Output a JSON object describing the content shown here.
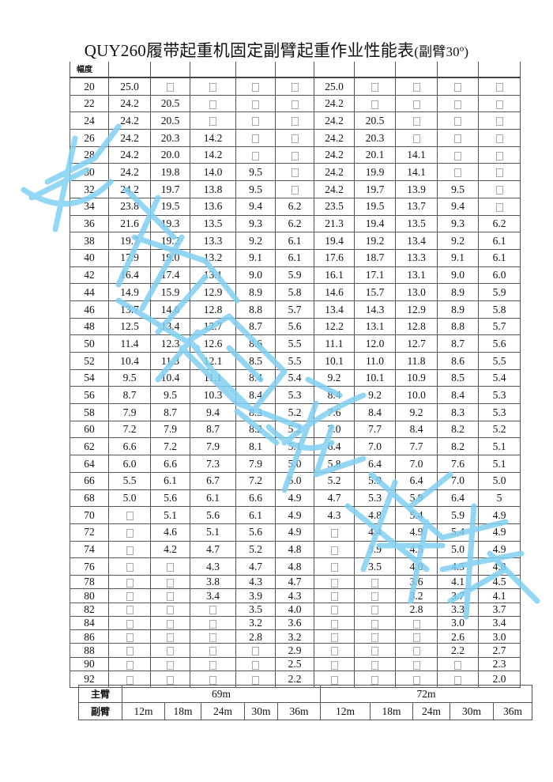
{
  "title": "QUY260履带起重机固定副臂起重作业性能表",
  "title_suffix": "(副臂30º)",
  "header_label": "幅度",
  "watermark_color": "#7fd0f2",
  "rows": [
    {
      "r": "20",
      "v": [
        "25.0",
        null,
        null,
        null,
        null,
        "25.0",
        null,
        null,
        null,
        null
      ]
    },
    {
      "r": "22",
      "v": [
        "24.2",
        "20.5",
        null,
        null,
        null,
        "24.2",
        null,
        null,
        null,
        null
      ]
    },
    {
      "r": "24",
      "v": [
        "24.2",
        "20.5",
        null,
        null,
        null,
        "24.2",
        "20.5",
        null,
        null,
        null
      ]
    },
    {
      "r": "26",
      "v": [
        "24.2",
        "20.3",
        "14.2",
        null,
        null,
        "24.2",
        "20.3",
        null,
        null,
        null
      ]
    },
    {
      "r": "28",
      "v": [
        "24.2",
        "20.0",
        "14.2",
        null,
        null,
        "24.2",
        "20.1",
        "14.1",
        null,
        null
      ]
    },
    {
      "r": "30",
      "v": [
        "24.2",
        "19.8",
        "14.0",
        "9.5",
        null,
        "24.2",
        "19.9",
        "14.1",
        null,
        null
      ]
    },
    {
      "r": "32",
      "v": [
        "24.2",
        "19.7",
        "13.8",
        "9.5",
        null,
        "24.2",
        "19.7",
        "13.9",
        "9.5",
        null
      ]
    },
    {
      "r": "34",
      "v": [
        "23.8",
        "19.5",
        "13.6",
        "9.4",
        "6.2",
        "23.5",
        "19.5",
        "13.7",
        "9.4",
        null
      ]
    },
    {
      "r": "36",
      "v": [
        "21.6",
        "19.3",
        "13.5",
        "9.3",
        "6.2",
        "21.3",
        "19.4",
        "13.5",
        "9.3",
        "6.2"
      ]
    },
    {
      "r": "38",
      "v": [
        "19.7",
        "19.2",
        "13.3",
        "9.2",
        "6.1",
        "19.4",
        "19.2",
        "13.4",
        "9.2",
        "6.1"
      ]
    },
    {
      "r": "40",
      "v": [
        "17.9",
        "19.0",
        "13.2",
        "9.1",
        "6.1",
        "17.6",
        "18.7",
        "13.3",
        "9.1",
        "6.1"
      ]
    },
    {
      "r": "42",
      "v": [
        "16.4",
        "17.4",
        "13.1",
        "9.0",
        "5.9",
        "16.1",
        "17.1",
        "13.1",
        "9.0",
        "6.0"
      ]
    },
    {
      "r": "44",
      "v": [
        "14.9",
        "15.9",
        "12.9",
        "8.9",
        "5.8",
        "14.6",
        "15.7",
        "13.0",
        "8.9",
        "5.9"
      ]
    },
    {
      "r": "46",
      "v": [
        "13.7",
        "14.6",
        "12.8",
        "8.8",
        "5.7",
        "13.4",
        "14.3",
        "12.9",
        "8.9",
        "5.8"
      ]
    },
    {
      "r": "48",
      "v": [
        "12.5",
        "13.4",
        "12.7",
        "8.7",
        "5.6",
        "12.2",
        "13.1",
        "12.8",
        "8.8",
        "5.7"
      ]
    },
    {
      "r": "50",
      "v": [
        "11.4",
        "12.3",
        "12.6",
        "8.6",
        "5.5",
        "11.1",
        "12.0",
        "12.7",
        "8.7",
        "5.6"
      ]
    },
    {
      "r": "52",
      "v": [
        "10.4",
        "11.3",
        "12.1",
        "8.5",
        "5.5",
        "10.1",
        "11.0",
        "11.8",
        "8.6",
        "5.5"
      ]
    },
    {
      "r": "54",
      "v": [
        "9.5",
        "10.4",
        "11.1",
        "8.4",
        "5.4",
        "9.2",
        "10.1",
        "10.9",
        "8.5",
        "5.4"
      ]
    },
    {
      "r": "56",
      "v": [
        "8.7",
        "9.5",
        "10.3",
        "8.4",
        "5.3",
        "8.4",
        "9.2",
        "10.0",
        "8.4",
        "5.3"
      ]
    },
    {
      "r": "58",
      "v": [
        "7.9",
        "8.7",
        "9.4",
        "8.3",
        "5.2",
        "7.6",
        "8.4",
        "9.2",
        "8.3",
        "5.3"
      ]
    },
    {
      "r": "60",
      "v": [
        "7.2",
        "7.9",
        "8.7",
        "8.2",
        "5.2",
        "7.0",
        "7.7",
        "8.4",
        "8.2",
        "5.2"
      ]
    },
    {
      "r": "62",
      "v": [
        "6.6",
        "7.2",
        "7.9",
        "8.1",
        "5.1",
        "6.4",
        "7.0",
        "7.7",
        "8.2",
        "5.1"
      ]
    },
    {
      "r": "64",
      "v": [
        "6.0",
        "6.6",
        "7.3",
        "7.9",
        "5.0",
        "5.8",
        "6.4",
        "7.0",
        "7.6",
        "5.1"
      ]
    },
    {
      "r": "66",
      "v": [
        "5.5",
        "6.1",
        "6.7",
        "7.2",
        "5.0",
        "5.2",
        "5.9",
        "6.4",
        "7.0",
        "5.0"
      ]
    },
    {
      "r": "68",
      "v": [
        "5.0",
        "5.6",
        "6.1",
        "6.6",
        "4.9",
        "4.7",
        "5.3",
        "5.9",
        "6.4",
        "5"
      ]
    },
    {
      "r": "70",
      "v": [
        null,
        "5.1",
        "5.6",
        "6.1",
        "4.9",
        "4.3",
        "4.8",
        "5.4",
        "5.9",
        "4.9"
      ]
    },
    {
      "r": "72",
      "v": [
        null,
        "4.6",
        "5.1",
        "5.6",
        "4.9",
        null,
        "4.4",
        "4.9",
        "5.4",
        "4.9"
      ]
    },
    {
      "r": "74",
      "v": [
        null,
        "4.2",
        "4.7",
        "5.2",
        "4.8",
        null,
        "3.9",
        "4.5",
        "5.0",
        "4.9"
      ]
    },
    {
      "r": "76",
      "v": [
        null,
        null,
        "4.3",
        "4.7",
        "4.8",
        null,
        "3.5",
        "4.0",
        "4.5",
        "4.8"
      ]
    },
    {
      "r": "78",
      "v": [
        null,
        null,
        "3.8",
        "4.3",
        "4.7",
        null,
        null,
        "3.6",
        "4.1",
        "4.5"
      ]
    },
    {
      "r": "80",
      "v": [
        null,
        null,
        "3.4",
        "3.9",
        "4.3",
        null,
        null,
        "3.2",
        "3.7",
        "4.1"
      ]
    },
    {
      "r": "82",
      "v": [
        null,
        null,
        null,
        "3.5",
        "4.0",
        null,
        null,
        "2.8",
        "3.3",
        "3.7"
      ]
    },
    {
      "r": "84",
      "v": [
        null,
        null,
        null,
        "3.2",
        "3.6",
        null,
        null,
        null,
        "3.0",
        "3.4"
      ]
    },
    {
      "r": "86",
      "v": [
        null,
        null,
        null,
        "2.8",
        "3.2",
        null,
        null,
        null,
        "2.6",
        "3.0"
      ]
    },
    {
      "r": "88",
      "v": [
        null,
        null,
        null,
        null,
        "2.9",
        null,
        null,
        null,
        "2.2",
        "2.7"
      ]
    },
    {
      "r": "90",
      "v": [
        null,
        null,
        null,
        null,
        "2.5",
        null,
        null,
        null,
        null,
        "2.3"
      ]
    },
    {
      "r": "92",
      "v": [
        null,
        null,
        null,
        null,
        "2.2",
        null,
        null,
        null,
        null,
        "2.0"
      ]
    }
  ],
  "footer": {
    "main_boom_label": "主臂",
    "jib_label": "副臂",
    "main_booms": [
      "69m",
      "72m"
    ],
    "jibs": [
      "12m",
      "18m",
      "24m",
      "30m",
      "36m",
      "12m",
      "18m",
      "24m",
      "30m",
      "36m"
    ]
  }
}
